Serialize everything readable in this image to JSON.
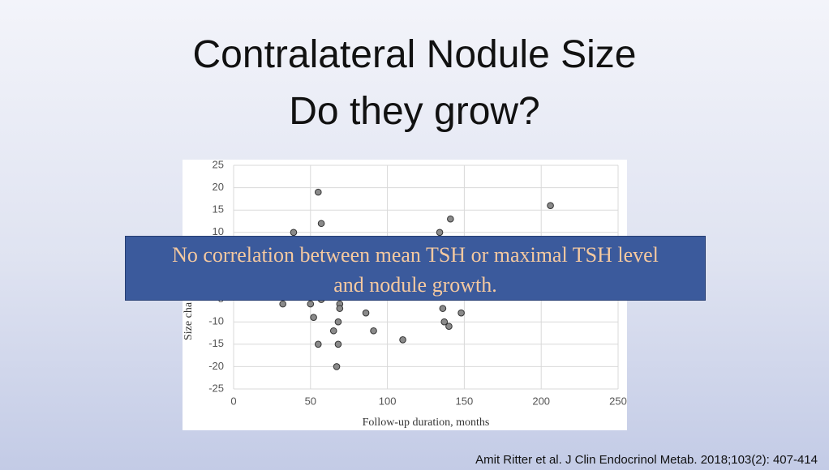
{
  "title": [
    "Contralateral Nodule Size",
    "Do they grow?"
  ],
  "chart_data": {
    "type": "scatter",
    "x": [
      55,
      57,
      39,
      141,
      134,
      206,
      32,
      50,
      57,
      69,
      69,
      52,
      86,
      136,
      148,
      68,
      137,
      140,
      65,
      91,
      110,
      55,
      68,
      67
    ],
    "values": [
      19,
      12,
      10,
      13,
      10,
      16,
      -6,
      -6,
      -5,
      -6,
      -7,
      -9,
      -8,
      -7,
      -8,
      -10,
      -10,
      -11,
      -12,
      -12,
      -14,
      -15,
      -15,
      -20
    ],
    "color": "#8a8a8a",
    "x_label": "Follow-up duration, months",
    "y_label": "Size cha",
    "xlim": [
      0,
      250
    ],
    "xticks": [
      0,
      50,
      100,
      150,
      200,
      250
    ],
    "ylim": [
      -25,
      25
    ],
    "yticks": [
      -25,
      -20,
      -15,
      -10,
      -5,
      0,
      5,
      10,
      15,
      20,
      25
    ],
    "grid": true
  },
  "overlay": [
    "No correlation between mean TSH or maximal TSH level",
    "and nodule growth."
  ],
  "citation": "Amit Ritter et al.  J Clin Endocrinol Metab. 2018;103(2): 407-414"
}
